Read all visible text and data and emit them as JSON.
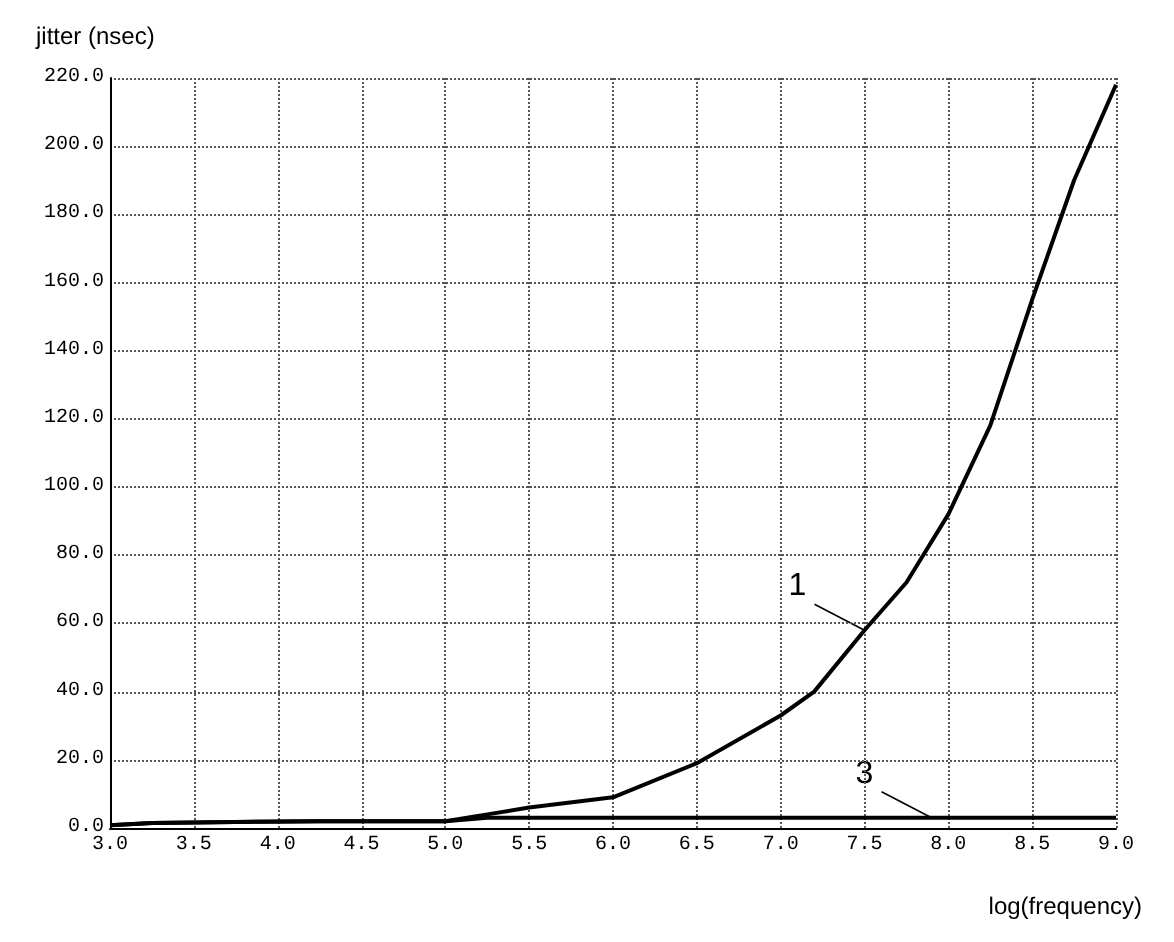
{
  "chart_data": {
    "type": "line",
    "ylabel": "jitter (nsec)",
    "xlabel": "log(frequency)",
    "series": [
      {
        "color": "#000000",
        "x": [
          3.0,
          3.25,
          4.25,
          5.0,
          5.25,
          5.5,
          6.0,
          6.5,
          7.0,
          7.2,
          7.5,
          7.75,
          8.0,
          8.25,
          8.5,
          8.75,
          9.0
        ],
        "values": [
          0.8,
          1.5,
          2,
          2,
          4,
          6,
          9,
          19,
          33,
          40,
          58,
          72,
          92,
          118,
          155,
          190,
          218
        ]
      },
      {
        "color": "#000000",
        "x": [
          3.0,
          3.25,
          4.25,
          5.0,
          5.25,
          5.5,
          9.0
        ],
        "values": [
          0.8,
          1.5,
          2,
          2,
          3,
          3,
          3
        ]
      }
    ],
    "annotations": [
      {
        "text": "1",
        "x": 7.5,
        "y": 58
      },
      {
        "text": "3",
        "x": 7.9,
        "y": 3
      }
    ],
    "xlim": [
      3.0,
      9.0
    ],
    "ylim": [
      0,
      220
    ],
    "xticks": [
      {
        "value": 3,
        "label": "3.0"
      },
      {
        "value": 3.5,
        "label": "3.5"
      },
      {
        "value": 4,
        "label": "4.0"
      },
      {
        "value": 4.5,
        "label": "4.5"
      },
      {
        "value": 5,
        "label": "5.0"
      },
      {
        "value": 5.5,
        "label": "5.5"
      },
      {
        "value": 6,
        "label": "6.0"
      },
      {
        "value": 6.5,
        "label": "6.5"
      },
      {
        "value": 7,
        "label": "7.0"
      },
      {
        "value": 7.5,
        "label": "7.5"
      },
      {
        "value": 8,
        "label": "8.0"
      },
      {
        "value": 8.5,
        "label": "8.5"
      },
      {
        "value": 9,
        "label": "9.0"
      }
    ],
    "yticks": [
      {
        "value": 0,
        "label": "0.0"
      },
      {
        "value": 20,
        "label": "20.0"
      },
      {
        "value": 40,
        "label": "40.0"
      },
      {
        "value": 60,
        "label": "60.0"
      },
      {
        "value": 80,
        "label": "80.0"
      },
      {
        "value": 100,
        "label": "100.0"
      },
      {
        "value": 120,
        "label": "120.0"
      },
      {
        "value": 140,
        "label": "140.0"
      },
      {
        "value": 160,
        "label": "160.0"
      },
      {
        "value": 180,
        "label": "180.0"
      },
      {
        "value": 200,
        "label": "200.0"
      },
      {
        "value": 220,
        "label": "220.0"
      }
    ],
    "grid": true,
    "line_style": "solid",
    "marker": "none"
  }
}
